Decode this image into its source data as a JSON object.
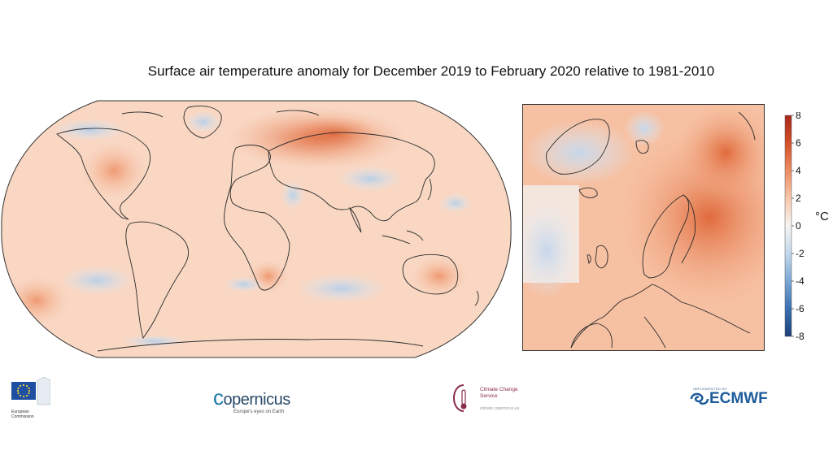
{
  "title": "Surface air temperature anomaly for December 2019 to February 2020 relative to 1981-2010",
  "colorbar": {
    "ticks": [
      "8",
      "6",
      "4",
      "2",
      "0",
      "-2",
      "-4",
      "-6",
      "-8"
    ],
    "unit": "°C",
    "range": [
      -8,
      8
    ],
    "colors": [
      "#1b3f7a",
      "#3a6fb0",
      "#7ba7d3",
      "#c2d8ec",
      "#f7f4f2",
      "#f7c8ad",
      "#ec8c62",
      "#d3502a",
      "#a8281a"
    ]
  },
  "logos": {
    "eu": "European Commission",
    "copernicus_pre": "c",
    "copernicus_rest": "opernicus",
    "copernicus_tagline": "Europe's eyes on Earth",
    "c3s_name": "Climate Change Service",
    "c3s_url": "climate.copernicus.eu",
    "ecmwf_small": "IMPLEMENTED BY",
    "ecmwf": "ECMWF"
  }
}
